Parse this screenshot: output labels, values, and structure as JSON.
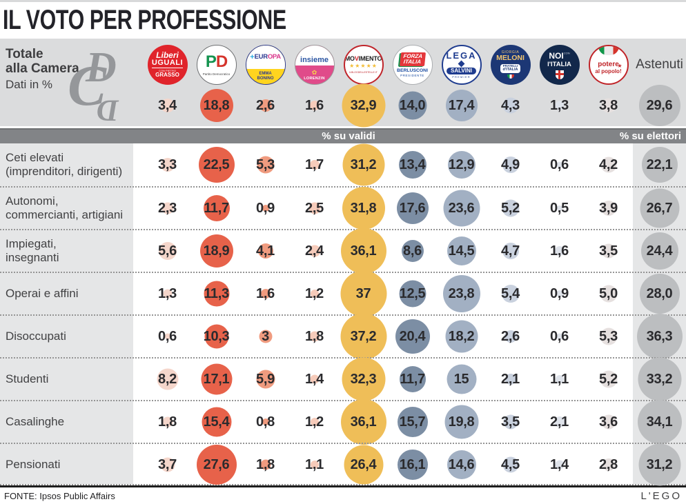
{
  "title": "IL VOTO PER PROFESSIONE",
  "header": {
    "intro_line1": "Totale",
    "intro_line2": "alla Camera",
    "intro_line3": "Dati in %",
    "astenuti_label": "Astenuti",
    "totals_display": [
      "3,4",
      "18,8",
      "2,6",
      "1,6",
      "32,9",
      "14,0",
      "17,4",
      "4,3",
      "1,3",
      "3,8",
      "29,6"
    ]
  },
  "bands": {
    "valid_label": "% su validi",
    "electors_label": "% su elettori"
  },
  "parties": [
    {
      "name": "Liberi e Uguali",
      "color": "#F5D6CB",
      "logo": {
        "t1": "Liberi",
        "t2": "UGUALI",
        "t3": "CON PIETRO",
        "t4": "GRASSO"
      }
    },
    {
      "name": "Partito Democratico",
      "color": "#E7624A",
      "logo": {
        "p": "P",
        "d": "D",
        "sub": "Partito Democratico"
      }
    },
    {
      "name": "+Europa",
      "color": "#F09B7F",
      "logo": {
        "plus": "+",
        "n1": "EUR",
        "n2": "OPA",
        "s1": "EMMA",
        "s2": "BONINO"
      }
    },
    {
      "name": "Insieme",
      "color": "#F6CBBA",
      "logo": {
        "name": "insieme",
        "flower": "✿",
        "sub": "LORENZIN"
      }
    },
    {
      "name": "Movimento 5 Stelle",
      "color": "#EFBE58",
      "logo": {
        "p1": "MO",
        "p2": "V",
        "p3": "IMENTO",
        "stars": "★★★★★",
        "url": "ILBLOGDELLESTELLE.IT"
      }
    },
    {
      "name": "Forza Italia",
      "color": "#7C8EA4",
      "logo": {
        "t1": "FORZA",
        "t2": "ITALIA",
        "t3": "BERLUSCONI",
        "t4": "PRESIDENTE"
      }
    },
    {
      "name": "Lega",
      "color": "#A2B0C3",
      "logo": {
        "t1": "LEGA",
        "t2": "SALVINI",
        "t3": "PREMIER"
      }
    },
    {
      "name": "Fratelli d'Italia",
      "color": "#C9D1DE",
      "logo": {
        "t1": "GIORGIA",
        "t2": "MELONI",
        "t3": "FRATELLI",
        "t4": "d'ITALIA"
      }
    },
    {
      "name": "Noi con l'Italia",
      "color": "#DFE3EA",
      "logo": {
        "t1": "NOI",
        "t2": "CON",
        "t3": "l'ITALIA"
      }
    },
    {
      "name": "Potere al Popolo",
      "color": "#E6E0DF",
      "logo": {
        "t1": "potere",
        "t2": "al popolo!",
        "star": "★"
      }
    },
    {
      "name": "Astenuti",
      "color": "#BCBEC0"
    }
  ],
  "rows": [
    {
      "label1": "Ceti elevati",
      "label2": "(imprenditori, dirigenti)",
      "display": [
        "3,3",
        "22,5",
        "5,3",
        "1,7",
        "31,2",
        "13,4",
        "12,9",
        "4,9",
        "0,6",
        "4,2",
        "22,1"
      ]
    },
    {
      "label1": "Autonomi,",
      "label2": "commercianti, artigiani",
      "display": [
        "2,3",
        "11,7",
        "0,9",
        "2,5",
        "31,8",
        "17,6",
        "23,6",
        "5,2",
        "0,5",
        "3,9",
        "26,7"
      ]
    },
    {
      "label1": "Impiegati,",
      "label2": "insegnanti",
      "display": [
        "5,6",
        "18,9",
        "4,1",
        "2,4",
        "36,1",
        "8,6",
        "14,5",
        "4,7",
        "1,6",
        "3,5",
        "24,4"
      ]
    },
    {
      "label1": "Operai e affini",
      "label2": "",
      "display": [
        "1,3",
        "11,3",
        "1,6",
        "1,2",
        "37",
        "12,5",
        "23,8",
        "5,4",
        "0,9",
        "5,0",
        "28,0"
      ]
    },
    {
      "label1": "Disoccupati",
      "label2": "",
      "display": [
        "0,6",
        "10,3",
        "3",
        "1,8",
        "37,2",
        "20,4",
        "18,2",
        "2,6",
        "0,6",
        "5,3",
        "36,3"
      ]
    },
    {
      "label1": "Studenti",
      "label2": "",
      "display": [
        "8,2",
        "17,1",
        "5,9",
        "1,4",
        "32,3",
        "11,7",
        "15",
        "2,1",
        "1,1",
        "5,2",
        "33,2"
      ]
    },
    {
      "label1": "Casalinghe",
      "label2": "",
      "display": [
        "1,8",
        "15,4",
        "0,8",
        "1,2",
        "36,1",
        "15,7",
        "19,8",
        "3,5",
        "2,1",
        "3,6",
        "34,1"
      ]
    },
    {
      "label1": "Pensionati",
      "label2": "",
      "display": [
        "3,7",
        "27,6",
        "1,8",
        "1,1",
        "26,4",
        "16,1",
        "14,6",
        "4,5",
        "1,4",
        "2,8",
        "31,2"
      ]
    }
  ],
  "footer": {
    "source": "FONTE: Ipsos Public Affairs",
    "credit": "L'EGO"
  },
  "chart_data": {
    "type": "table",
    "title": "IL VOTO PER PROFESSIONE",
    "subtitle": "Totale alla Camera — Dati in %",
    "value_basis": {
      "party_columns": "% su validi",
      "astenuti_column": "% su elettori"
    },
    "encoding": "bubble size proportional to value",
    "columns": [
      "Liberi e Uguali",
      "Partito Democratico",
      "+Europa",
      "Insieme",
      "Movimento 5 Stelle",
      "Forza Italia",
      "Lega",
      "Fratelli d'Italia",
      "Noi con l'Italia",
      "Potere al Popolo",
      "Astenuti"
    ],
    "totals": [
      3.4,
      18.8,
      2.6,
      1.6,
      32.9,
      14.0,
      17.4,
      4.3,
      1.3,
      3.8,
      29.6
    ],
    "rows": [
      {
        "label": "Ceti elevati (imprenditori, dirigenti)",
        "values": [
          3.3,
          22.5,
          5.3,
          1.7,
          31.2,
          13.4,
          12.9,
          4.9,
          0.6,
          4.2,
          22.1
        ]
      },
      {
        "label": "Autonomi, commercianti, artigiani",
        "values": [
          2.3,
          11.7,
          0.9,
          2.5,
          31.8,
          17.6,
          23.6,
          5.2,
          0.5,
          3.9,
          26.7
        ]
      },
      {
        "label": "Impiegati, insegnanti",
        "values": [
          5.6,
          18.9,
          4.1,
          2.4,
          36.1,
          8.6,
          14.5,
          4.7,
          1.6,
          3.5,
          24.4
        ]
      },
      {
        "label": "Operai e affini",
        "values": [
          1.3,
          11.3,
          1.6,
          1.2,
          37,
          12.5,
          23.8,
          5.4,
          0.9,
          5.0,
          28.0
        ]
      },
      {
        "label": "Disoccupati",
        "values": [
          0.6,
          10.3,
          3,
          1.8,
          37.2,
          20.4,
          18.2,
          2.6,
          0.6,
          5.3,
          36.3
        ]
      },
      {
        "label": "Studenti",
        "values": [
          8.2,
          17.1,
          5.9,
          1.4,
          32.3,
          11.7,
          15,
          2.1,
          1.1,
          5.2,
          33.2
        ]
      },
      {
        "label": "Casalinghe",
        "values": [
          1.8,
          15.4,
          0.8,
          1.2,
          36.1,
          15.7,
          19.8,
          3.5,
          2.1,
          3.6,
          34.1
        ]
      },
      {
        "label": "Pensionati",
        "values": [
          3.7,
          27.6,
          1.8,
          1.1,
          26.4,
          16.1,
          14.6,
          4.5,
          1.4,
          2.8,
          31.2
        ]
      }
    ],
    "source": "FONTE: Ipsos Public Affairs"
  }
}
